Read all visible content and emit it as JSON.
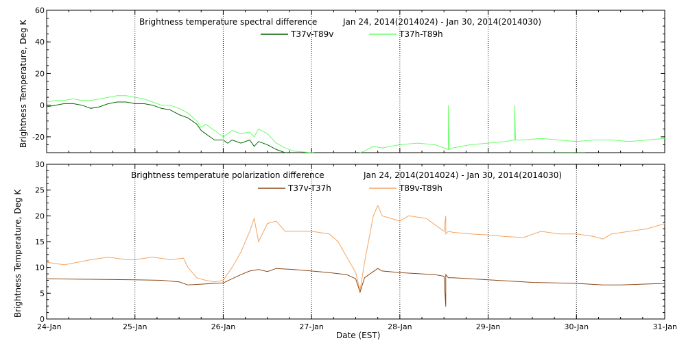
{
  "chart_data": [
    {
      "type": "line",
      "title": "Brightness temperature spectral difference",
      "date_range": "Jan 24, 2014(2014024) - Jan 30, 2014(2014030)",
      "ylabel": "Brightness Temperature, Deg K",
      "xlim": [
        0,
        7
      ],
      "ylim": [
        -30,
        60
      ],
      "yticks": [
        -20,
        0,
        20,
        40,
        60
      ],
      "grid": "vertical dotted",
      "legend": "top-center",
      "series": [
        {
          "name": "T37v-T89v",
          "color": "#006400",
          "x": [
            0,
            0.1,
            0.2,
            0.3,
            0.4,
            0.5,
            0.6,
            0.7,
            0.8,
            0.9,
            1.0,
            1.1,
            1.2,
            1.3,
            1.4,
            1.5,
            1.6,
            1.7,
            1.75,
            1.8,
            1.85,
            1.9,
            2.0,
            2.05,
            2.1,
            2.2,
            2.3,
            2.35,
            2.4,
            2.5,
            2.6,
            2.7,
            2.75,
            5.9,
            6.1
          ],
          "values": [
            -1,
            0,
            1,
            1,
            0,
            -2,
            -1,
            1,
            2,
            2,
            1,
            1,
            0,
            -2,
            -3,
            -6,
            -8,
            -12,
            -16,
            -18,
            -20,
            -22,
            -22,
            -24,
            -22,
            -24,
            -22,
            -26,
            -23,
            -25,
            -28,
            -30,
            -31,
            -30,
            -30
          ]
        },
        {
          "name": "T37h-T89h",
          "color": "#66ff66",
          "x": [
            0,
            0.1,
            0.2,
            0.3,
            0.4,
            0.5,
            0.6,
            0.7,
            0.8,
            0.9,
            1.0,
            1.1,
            1.2,
            1.3,
            1.4,
            1.5,
            1.6,
            1.7,
            1.75,
            1.8,
            1.9,
            2.0,
            2.05,
            2.1,
            2.2,
            2.3,
            2.35,
            2.4,
            2.5,
            2.6,
            2.7,
            2.8,
            3.0,
            3.2,
            3.5,
            3.6,
            3.7,
            3.8,
            4.0,
            4.2,
            4.4,
            4.5,
            4.55,
            4.55,
            4.56,
            4.6,
            4.8,
            5.0,
            5.2,
            5.3,
            5.3,
            5.31,
            5.4,
            5.6,
            5.8,
            6.0,
            6.2,
            6.4,
            6.6,
            6.8,
            7.0
          ],
          "values": [
            2,
            3,
            3,
            4,
            3,
            3,
            4,
            5,
            6,
            6,
            5,
            4,
            2,
            0,
            0,
            -2,
            -5,
            -10,
            -14,
            -12,
            -16,
            -20,
            -18,
            -16,
            -18,
            -17,
            -20,
            -15,
            -18,
            -24,
            -27,
            -29,
            -30,
            -31,
            -31,
            -29,
            -26,
            -27,
            -25,
            -24,
            -25,
            -27,
            -28,
            0,
            -28,
            -27,
            -25,
            -24,
            -23,
            -22,
            0,
            -22,
            -22,
            -21,
            -22,
            -23,
            -22,
            -22,
            -23,
            -22,
            -21
          ]
        }
      ],
      "xticks": [
        "24-Jan",
        "25-Jan",
        "26-Jan",
        "27-Jan",
        "28-Jan",
        "29-Jan",
        "30-Jan",
        "31-Jan"
      ]
    },
    {
      "type": "line",
      "title": "Brightness temperature polarization difference",
      "date_range": "Jan 24, 2014(2014024) - Jan 30, 2014(2014030)",
      "ylabel": "Brightness Temperature, Deg K",
      "xlabel": "Date (EST)",
      "xlim": [
        0,
        7
      ],
      "ylim": [
        0,
        30
      ],
      "yticks": [
        0,
        5,
        10,
        15,
        20,
        25,
        30
      ],
      "grid": "vertical dotted",
      "legend": "top-center",
      "series": [
        {
          "name": "T37v-T37h",
          "color": "#8b4513",
          "x": [
            0,
            0.5,
            1.0,
            1.3,
            1.5,
            1.6,
            1.8,
            2.0,
            2.1,
            2.2,
            2.3,
            2.4,
            2.5,
            2.6,
            2.8,
            3.0,
            3.2,
            3.4,
            3.5,
            3.55,
            3.6,
            3.7,
            3.75,
            3.8,
            4.0,
            4.2,
            4.4,
            4.5,
            4.52,
            4.52,
            4.55,
            4.6,
            4.8,
            5.0,
            5.2,
            5.5,
            6.0,
            6.3,
            6.5,
            7.0
          ],
          "values": [
            7.8,
            7.7,
            7.6,
            7.5,
            7.2,
            6.6,
            6.8,
            7.0,
            7.8,
            8.6,
            9.3,
            9.6,
            9.2,
            9.8,
            9.6,
            9.3,
            9.0,
            8.6,
            7.8,
            5.2,
            8.0,
            9.2,
            9.8,
            9.3,
            9.0,
            8.8,
            8.6,
            8.3,
            2.4,
            8.6,
            8.0,
            8.0,
            7.8,
            7.6,
            7.4,
            7.1,
            6.9,
            6.6,
            6.6,
            6.9
          ]
        },
        {
          "name": "T89v-T89h",
          "color": "#f4a460",
          "x": [
            0,
            0.2,
            0.5,
            0.7,
            0.9,
            1.0,
            1.2,
            1.4,
            1.55,
            1.6,
            1.7,
            1.8,
            1.9,
            2.0,
            2.1,
            2.2,
            2.3,
            2.35,
            2.4,
            2.5,
            2.6,
            2.7,
            3.0,
            3.2,
            3.3,
            3.4,
            3.5,
            3.55,
            3.6,
            3.7,
            3.75,
            3.8,
            4.0,
            4.1,
            4.3,
            4.5,
            4.52,
            4.52,
            4.55,
            4.6,
            4.8,
            5.0,
            5.2,
            5.4,
            5.6,
            5.8,
            6.0,
            6.2,
            6.3,
            6.4,
            6.6,
            6.8,
            7.0
          ],
          "values": [
            11,
            10.5,
            11.5,
            12,
            11.5,
            11.5,
            12,
            11.5,
            11.8,
            10,
            8,
            7.5,
            7.2,
            7.5,
            10,
            13,
            17,
            19.5,
            15,
            18.5,
            19,
            17,
            17,
            16.5,
            15,
            12,
            9,
            5.5,
            11,
            20,
            22,
            20,
            19,
            20,
            19.5,
            17,
            20,
            16.5,
            17,
            16.8,
            16.5,
            16.3,
            16,
            15.8,
            17,
            16.5,
            16.5,
            16,
            15.5,
            16.5,
            17,
            17.5,
            18.5
          ]
        }
      ],
      "xticks": [
        "24-Jan",
        "25-Jan",
        "26-Jan",
        "27-Jan",
        "28-Jan",
        "29-Jan",
        "30-Jan",
        "31-Jan"
      ]
    }
  ]
}
